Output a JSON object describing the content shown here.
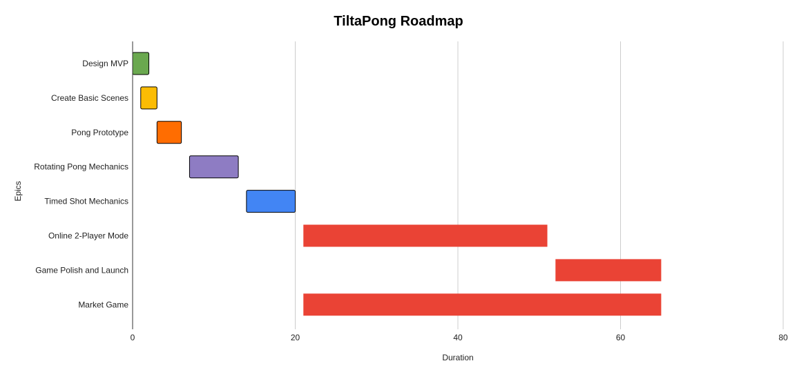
{
  "chart_data": {
    "type": "bar",
    "orientation": "horizontal",
    "stacked_range": true,
    "title": "TiltaPong Roadmap",
    "xlabel": "Duration",
    "ylabel": "Epics",
    "xlim": [
      0,
      80
    ],
    "xticks": [
      "0",
      "20",
      "40",
      "60",
      "80"
    ],
    "grid": true,
    "legend": "none",
    "categories": [
      "Design MVP",
      "Create Basic Scenes",
      "Pong Prototype",
      "Rotating Pong Mechanics",
      "Timed Shot Mechanics",
      "Online 2-Player Mode",
      "Game Polish and Launch",
      "Market Game"
    ],
    "start": [
      0,
      1,
      3,
      7,
      14,
      21,
      52,
      21
    ],
    "end": [
      2,
      3,
      6,
      13,
      20,
      51,
      65,
      65
    ],
    "colors": [
      "#6aa84f",
      "#fbbc04",
      "#ff6d01",
      "#8e7cc3",
      "#4285f4",
      "#ea4335",
      "#ea4335",
      "#ea4335"
    ],
    "outlined": [
      true,
      true,
      true,
      true,
      true,
      false,
      false,
      false
    ]
  }
}
